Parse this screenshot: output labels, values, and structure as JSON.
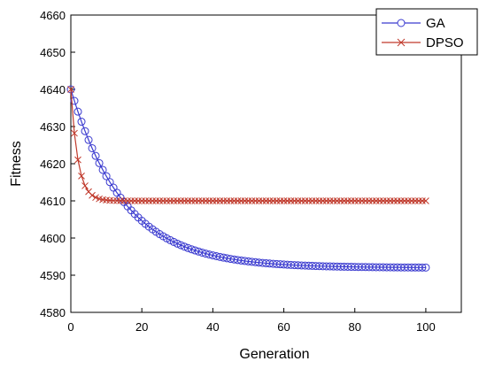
{
  "chart_data": {
    "type": "line",
    "title": "",
    "xlabel": "Generation",
    "ylabel": "Fitness",
    "xlim": [
      0,
      110
    ],
    "ylim": [
      4580,
      4660
    ],
    "xticks": [
      0,
      20,
      40,
      60,
      80,
      100
    ],
    "yticks": [
      4580,
      4590,
      4600,
      4610,
      4620,
      4630,
      4640,
      4650,
      4660
    ],
    "grid": false,
    "legend_position": "top-right",
    "series": [
      {
        "name": "GA",
        "color": "#3a3acf",
        "marker": "circle",
        "model": {
          "start": 4640,
          "end": 4592,
          "decay": 15
        }
      },
      {
        "name": "DPSO",
        "color": "#c0392b",
        "marker": "x",
        "model": {
          "start": 4640,
          "end": 4610,
          "decay": 2
        }
      }
    ],
    "x_points": {
      "from": 0,
      "to": 100,
      "step": 1
    }
  }
}
